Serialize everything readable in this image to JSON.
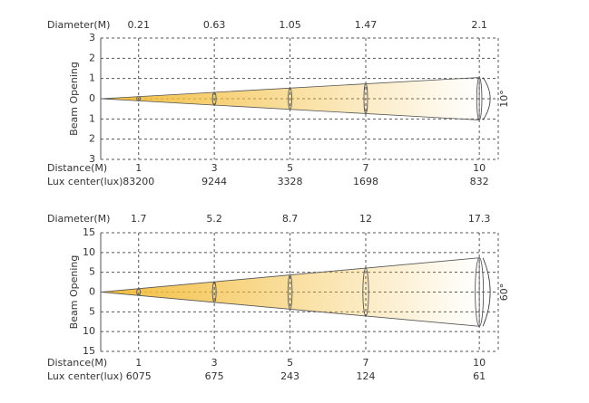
{
  "chart_data": [
    {
      "type": "beam",
      "y_label": "Beam Opening",
      "diameter_label": "Diameter(M)",
      "distance_label": "Distance(M)",
      "lux_label": "Lux center(lux)",
      "angle_label": "10°",
      "x": [
        1,
        3,
        5,
        7,
        10
      ],
      "diameters": [
        0.21,
        0.63,
        1.05,
        1.47,
        2.1
      ],
      "lux": [
        83200,
        9244,
        3328,
        1698,
        832
      ],
      "xlim": [
        0,
        10.5
      ],
      "ylim": [
        -3,
        3
      ],
      "yticks": [
        3,
        2,
        1,
        0,
        {
          "value": -1,
          "label": "1"
        },
        {
          "value": -2,
          "label": "2"
        },
        {
          "value": -3,
          "label": "3"
        }
      ],
      "color": "#f3bd3c",
      "grid": true
    },
    {
      "type": "beam",
      "y_label": "Beam Opening",
      "diameter_label": "Diameter(M)",
      "distance_label": "Distance(M)",
      "lux_label": "Lux center(lux)",
      "angle_label": "60°",
      "x": [
        1,
        3,
        5,
        7,
        10
      ],
      "diameters": [
        1.7,
        5.2,
        8.7,
        12,
        17.3
      ],
      "lux": [
        6075,
        675,
        243,
        124,
        61
      ],
      "xlim": [
        0,
        10.5
      ],
      "ylim": [
        -15,
        15
      ],
      "yticks": [
        15,
        10,
        5,
        0,
        {
          "value": -5,
          "label": "5"
        },
        {
          "value": -10,
          "label": "10"
        },
        {
          "value": -15,
          "label": "15"
        }
      ],
      "color": "#f3bd3c",
      "grid": true
    }
  ]
}
